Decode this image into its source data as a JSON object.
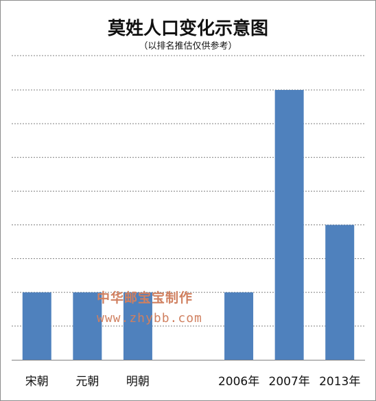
{
  "chart_data": {
    "type": "bar",
    "title": "莫姓人口变化示意图",
    "subtitle": "（以排名推估仅供参考）",
    "categories": [
      "宋朝",
      "元朝",
      "明朝",
      "",
      "2006年",
      "2007年",
      "2013年"
    ],
    "values": [
      2,
      2,
      2,
      null,
      2,
      8,
      4
    ],
    "ylim": [
      0,
      8
    ],
    "grid": true,
    "bar_color": "#4f81bd",
    "grid_color": "#7f7f7f"
  },
  "watermark": {
    "text": "中华邮宝宝制作",
    "url": "www.zhybb.com"
  }
}
